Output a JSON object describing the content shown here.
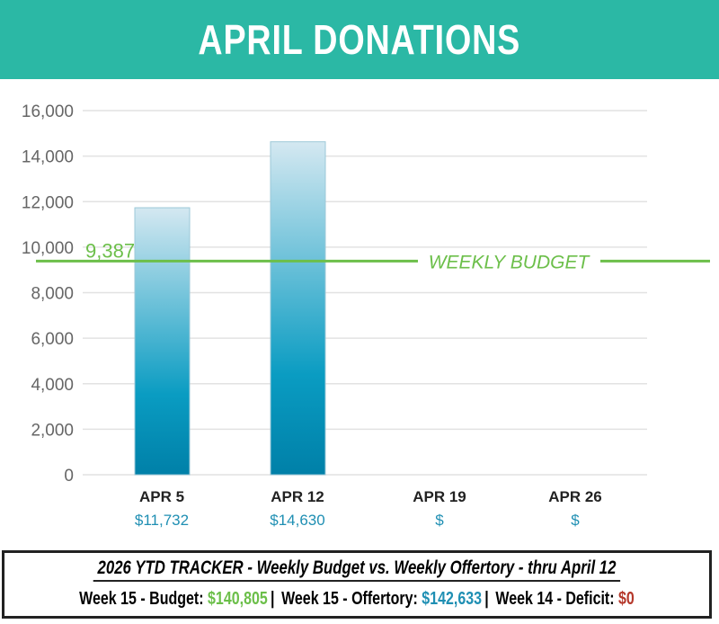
{
  "header": {
    "title": "APRIL DONATIONS"
  },
  "chart_data": {
    "type": "bar",
    "title": "APRIL DONATIONS",
    "categories": [
      "APR 5",
      "APR 12",
      "APR 19",
      "APR 26"
    ],
    "values": [
      11732,
      14630,
      null,
      null
    ],
    "value_labels": [
      "$11,732",
      "$14,630",
      "$",
      "$"
    ],
    "yticks": [
      0,
      2000,
      4000,
      6000,
      8000,
      10000,
      12000,
      14000,
      16000
    ],
    "ytick_labels": [
      "0",
      "2,000",
      "4,000",
      "6,000",
      "8,000",
      "10,000",
      "12,000",
      "14,000",
      "16,000"
    ],
    "ylim": [
      0,
      16000
    ],
    "grid": true,
    "reference_line": {
      "value": 9387,
      "value_label": "9,387",
      "label": "WEEKLY BUDGET",
      "color": "#6cbf4a"
    },
    "bar_color": "#0088b0"
  },
  "tracker": {
    "title": "2026 YTD TRACKER  -  Weekly Budget  vs. Weekly Offertory  -  thru April 12",
    "budget_label": "Week 15 - Budget:",
    "budget_value": "$140,805",
    "offertory_label": "Week 15 - Offertory:",
    "offertory_value": "$142,633",
    "deficit_label": "Week 14 - Deficit:",
    "deficit_value": "$0"
  }
}
